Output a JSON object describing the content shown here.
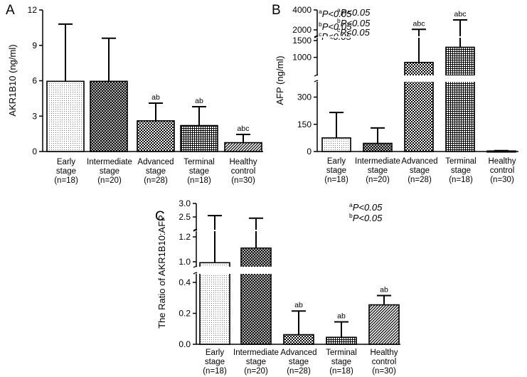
{
  "chart_data": [
    {
      "panel": "A",
      "type": "bar",
      "ylabel": "AKR1B10 (ng/ml)",
      "ylim": [
        0,
        12
      ],
      "yticks": [
        "0",
        "3",
        "6",
        "9",
        "12"
      ],
      "categories": [
        [
          "Early",
          "stage",
          "(n=18)"
        ],
        [
          "Intermediate",
          "stage",
          "(n=20)"
        ],
        [
          "Advanced",
          "stage",
          "(n=28)"
        ],
        [
          "Terminal",
          "stage",
          "(n=18)"
        ],
        [
          "Healthy",
          "control",
          "(n=30)"
        ]
      ],
      "values": [
        5.95,
        5.95,
        2.6,
        2.2,
        0.75
      ],
      "error_upper": [
        10.8,
        9.6,
        4.1,
        3.8,
        1.45
      ],
      "significance": [
        "",
        "",
        "ab",
        "ab",
        "abc"
      ],
      "annotations": [
        {
          "sup": "a",
          "text": "P<0.05"
        },
        {
          "sup": "b",
          "text": "P<0.05"
        },
        {
          "sup": "c",
          "text": "P<0.05"
        }
      ],
      "patterns": [
        "dots",
        "crosshatch-dense",
        "checker",
        "grid",
        "diagonal"
      ]
    },
    {
      "panel": "B",
      "type": "bar",
      "ylabel": "AFP (ng/ml)",
      "broken_axis": true,
      "yticks": [
        "0",
        "150",
        "300",
        "1000",
        "1500",
        "2000",
        "4000"
      ],
      "categories": [
        [
          "Early",
          "stage",
          "(n=18)"
        ],
        [
          "Intermediate",
          "stage",
          "(n=20)"
        ],
        [
          "Advanced",
          "stage",
          "(n=28)"
        ],
        [
          "Terminal",
          "stage",
          "(n=18)"
        ],
        [
          "Healthy",
          "control",
          "(n=30)"
        ]
      ],
      "values": [
        75,
        45,
        850,
        1300,
        3
      ],
      "error_upper": [
        215,
        130,
        2050,
        3000,
        5
      ],
      "significance": [
        "",
        "",
        "abc",
        "abc",
        ""
      ],
      "annotations": [
        {
          "sup": "a",
          "text": "P<0.05"
        },
        {
          "sup": "b",
          "text": "P<0.05"
        },
        {
          "sup": "c",
          "text": "P<0.05"
        }
      ],
      "patterns": [
        "dots",
        "crosshatch-dense",
        "checker",
        "grid",
        "diagonal"
      ]
    },
    {
      "panel": "C",
      "type": "bar",
      "ylabel": "The Ratio of AKR1B10:AFP",
      "broken_axis": true,
      "yticks": [
        "0.0",
        "0.2",
        "0.4",
        "1.0",
        "1.2",
        "2.5",
        "3.0"
      ],
      "categories": [
        [
          "Early",
          "stage",
          "(n=18)"
        ],
        [
          "Intermediate",
          "stage",
          "(n=20)"
        ],
        [
          "Advanced",
          "stage",
          "(n=28)"
        ],
        [
          "Terminal",
          "stage",
          "(n=18)"
        ],
        [
          "Healthy",
          "control",
          "(n=30)"
        ]
      ],
      "values": [
        0.97,
        1.11,
        0.062,
        0.045,
        0.255
      ],
      "error_upper": [
        2.55,
        2.4,
        0.215,
        0.145,
        0.315
      ],
      "significance": [
        "",
        "",
        "ab",
        "ab",
        "ab"
      ],
      "annotations": [
        {
          "sup": "a",
          "text": "P<0.05"
        },
        {
          "sup": "b",
          "text": "P<0.05"
        }
      ],
      "patterns": [
        "dots",
        "crosshatch-dense",
        "checker",
        "grid",
        "diagonal"
      ]
    }
  ],
  "icons": {
    "break": "axis-break-icon"
  }
}
